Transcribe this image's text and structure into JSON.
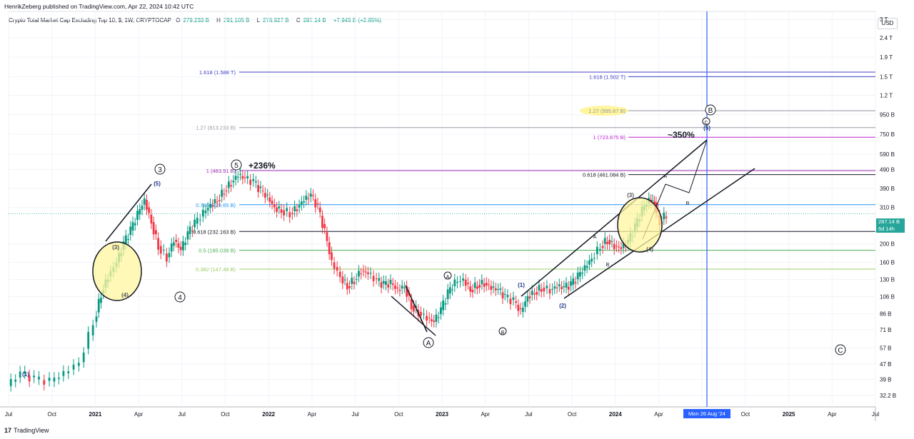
{
  "publisher": "HenrikZeberg published on TradingView.com, Apr 22, 2024 10:42 UTC",
  "legend": {
    "title": "Crypto Total Market Cap Excluding Top 10, $, 1W, CRYPTOCAP",
    "open_key": "O",
    "open": "279.233 B",
    "high_key": "H",
    "high": "291.105 B",
    "low_key": "L",
    "low": "276.927 B",
    "close_key": "C",
    "close": "287.14 B",
    "change": "+7.945 B (+2.85%)"
  },
  "currency": "USD",
  "price_badge": {
    "price": "287.14 B",
    "countdown": "6d 14h"
  },
  "crosshair_time": "Mon 26 Aug '24",
  "footer": {
    "mark": "17",
    "brand": "TradingView"
  },
  "colors": {
    "up": "#089981",
    "down": "#f23645",
    "crosshair": "#2962ff",
    "badge": "#26a69a"
  },
  "chart_data": {
    "type": "candlestick",
    "scale": "log",
    "y_ticks": [
      "3 T",
      "2.4 T",
      "1.9 T",
      "1.5 T",
      "1.2 T",
      "950 B",
      "750 B",
      "590 B",
      "490 B",
      "390 B",
      "310 B",
      "200 B",
      "160 B",
      "130 B",
      "106 B",
      "86 B",
      "71 B",
      "57 B",
      "47 B",
      "39 B",
      "32.2 B"
    ],
    "y_tick_values": [
      3000,
      2400,
      1900,
      1500,
      1200,
      950,
      750,
      590,
      490,
      390,
      310,
      200,
      160,
      130,
      106,
      86,
      71,
      57,
      47,
      39,
      32.2
    ],
    "x_ticks": [
      "Jul",
      "Oct",
      "2021",
      "Apr",
      "Jul",
      "Oct",
      "2022",
      "Apr",
      "Jul",
      "Oct",
      "2023",
      "Apr",
      "Jul",
      "Oct",
      "2024",
      "Apr",
      "Jul",
      "Oct",
      "2025",
      "Apr",
      "Jul"
    ],
    "x_tick_values": [
      2020.5,
      2020.75,
      2021.0,
      2021.25,
      2021.5,
      2021.75,
      2022.0,
      2022.25,
      2022.5,
      2022.75,
      2023.0,
      2023.25,
      2023.5,
      2023.75,
      2024.0,
      2024.25,
      2024.5,
      2024.75,
      2025.0,
      2025.25,
      2025.5
    ],
    "x_range": [
      2020.5,
      2025.5
    ],
    "y_range": [
      28,
      3300
    ],
    "price_path": [
      [
        2020.5,
        36
      ],
      [
        2020.58,
        42
      ],
      [
        2020.66,
        39
      ],
      [
        2020.75,
        38
      ],
      [
        2020.83,
        42
      ],
      [
        2020.92,
        48
      ],
      [
        2021.0,
        78
      ],
      [
        2021.04,
        110
      ],
      [
        2021.08,
        135
      ],
      [
        2021.13,
        160
      ],
      [
        2021.17,
        200
      ],
      [
        2021.21,
        235
      ],
      [
        2021.25,
        285
      ],
      [
        2021.29,
        340
      ],
      [
        2021.33,
        260
      ],
      [
        2021.37,
        195
      ],
      [
        2021.42,
        170
      ],
      [
        2021.46,
        210
      ],
      [
        2021.5,
        185
      ],
      [
        2021.54,
        225
      ],
      [
        2021.58,
        255
      ],
      [
        2021.63,
        290
      ],
      [
        2021.67,
        320
      ],
      [
        2021.71,
        340
      ],
      [
        2021.75,
        380
      ],
      [
        2021.79,
        420
      ],
      [
        2021.83,
        460
      ],
      [
        2021.87,
        440
      ],
      [
        2021.92,
        420
      ],
      [
        2021.96,
        380
      ],
      [
        2022.0,
        350
      ],
      [
        2022.04,
        310
      ],
      [
        2022.08,
        300
      ],
      [
        2022.13,
        290
      ],
      [
        2022.17,
        310
      ],
      [
        2022.21,
        340
      ],
      [
        2022.25,
        360
      ],
      [
        2022.29,
        310
      ],
      [
        2022.33,
        230
      ],
      [
        2022.37,
        160
      ],
      [
        2022.42,
        135
      ],
      [
        2022.46,
        120
      ],
      [
        2022.5,
        130
      ],
      [
        2022.54,
        145
      ],
      [
        2022.58,
        140
      ],
      [
        2022.63,
        128
      ],
      [
        2022.67,
        122
      ],
      [
        2022.71,
        124
      ],
      [
        2022.75,
        115
      ],
      [
        2022.79,
        120
      ],
      [
        2022.83,
        95
      ],
      [
        2022.87,
        88
      ],
      [
        2022.92,
        82
      ],
      [
        2022.96,
        78
      ],
      [
        2023.0,
        90
      ],
      [
        2023.04,
        110
      ],
      [
        2023.08,
        125
      ],
      [
        2023.13,
        130
      ],
      [
        2023.17,
        115
      ],
      [
        2023.21,
        122
      ],
      [
        2023.25,
        125
      ],
      [
        2023.29,
        118
      ],
      [
        2023.33,
        115
      ],
      [
        2023.37,
        105
      ],
      [
        2023.42,
        100
      ],
      [
        2023.46,
        88
      ],
      [
        2023.5,
        106
      ],
      [
        2023.54,
        112
      ],
      [
        2023.58,
        118
      ],
      [
        2023.63,
        115
      ],
      [
        2023.67,
        120
      ],
      [
        2023.71,
        118
      ],
      [
        2023.75,
        122
      ],
      [
        2023.79,
        135
      ],
      [
        2023.83,
        150
      ],
      [
        2023.87,
        168
      ],
      [
        2023.92,
        195
      ],
      [
        2023.96,
        210
      ],
      [
        2024.0,
        195
      ],
      [
        2024.04,
        190
      ],
      [
        2024.08,
        205
      ],
      [
        2024.12,
        245
      ],
      [
        2024.16,
        300
      ],
      [
        2024.2,
        340
      ],
      [
        2024.23,
        330
      ],
      [
        2024.26,
        260
      ],
      [
        2024.3,
        287
      ]
    ],
    "annotations": {
      "waves": [
        "(1)",
        "(2)",
        "(3)",
        "(4)",
        "(5)",
        "3",
        "4",
        "5",
        "A",
        "B",
        "C"
      ],
      "fib_levels": [
        {
          "label": "1.618 (1.588 T)",
          "value": 1588
        },
        {
          "label": "1.618 (1.502 T)",
          "value": 1502
        },
        {
          "label": "1.27 (995.67 B)",
          "value": 995.67
        },
        {
          "label": "1.27 (813.233 B)",
          "value": 813.233
        },
        {
          "label": "1 (723.875 B)",
          "value": 723.875
        },
        {
          "label": "1 (483.91 B)",
          "value": 483.91
        },
        {
          "label": "0.618 (461.084 B)",
          "value": 461.084
        },
        {
          "label": "0.786 (320.65 B)",
          "value": 320.65
        },
        {
          "label": "0.618 (232.163 B)",
          "value": 232.163
        },
        {
          "label": "0.5 (185.039 B)",
          "value": 185.039
        },
        {
          "label": "0.382 (147.48 B)",
          "value": 147.48
        }
      ],
      "texts": [
        "+236%",
        "~350%"
      ]
    }
  }
}
